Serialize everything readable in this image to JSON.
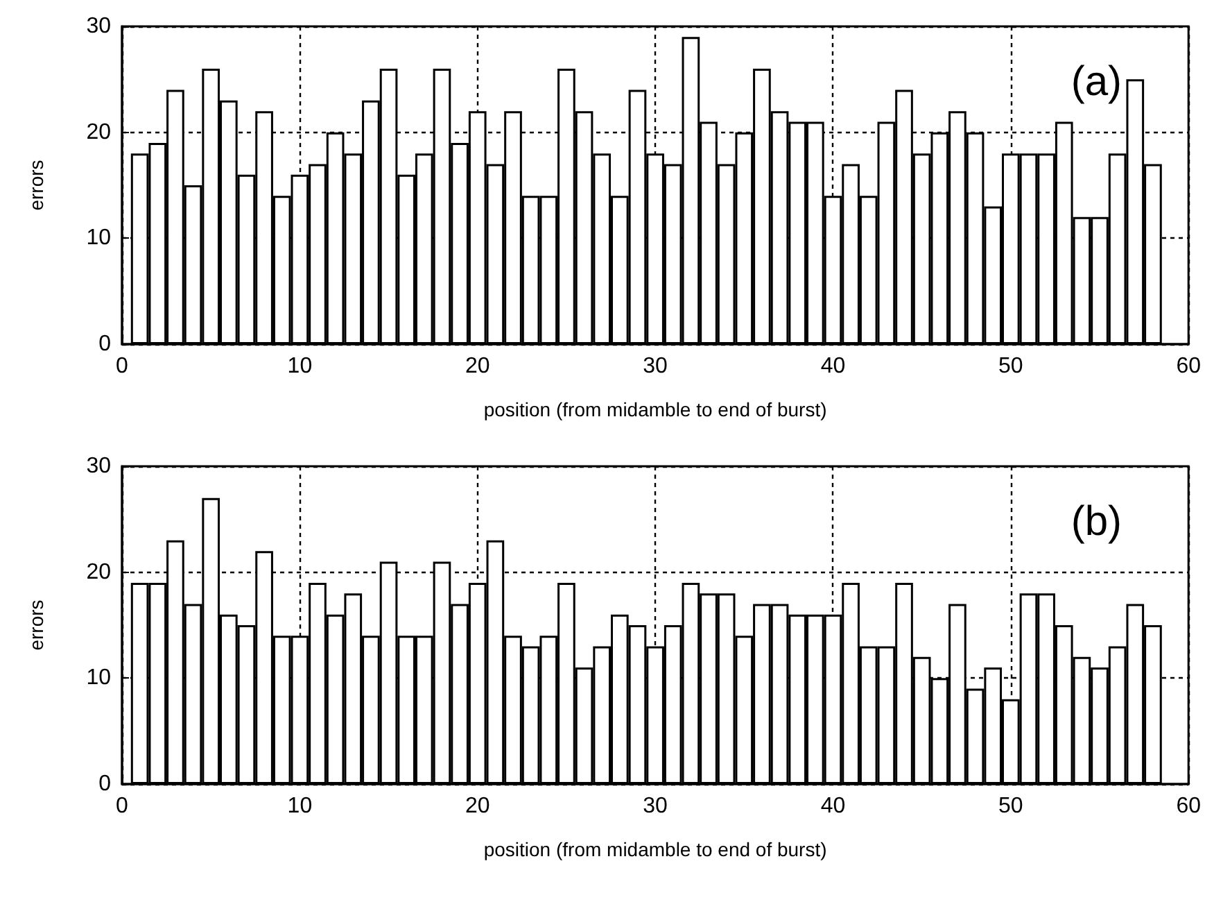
{
  "chart_data": [
    {
      "type": "bar",
      "xlabel": "position (from midamble to end of burst)",
      "ylabel": "errors",
      "annotations": [
        "(a)"
      ],
      "color": "#ffffff",
      "grid": true,
      "xlim": [
        0,
        60
      ],
      "xticks": [
        0,
        10,
        20,
        30,
        40,
        50,
        60
      ],
      "ylim": [
        0,
        30
      ],
      "yticks": [
        0,
        10,
        20,
        30
      ],
      "x": [
        1,
        2,
        3,
        4,
        5,
        6,
        7,
        8,
        9,
        10,
        11,
        12,
        13,
        14,
        15,
        16,
        17,
        18,
        19,
        20,
        21,
        22,
        23,
        24,
        25,
        26,
        27,
        28,
        29,
        30,
        31,
        32,
        33,
        34,
        35,
        36,
        37,
        38,
        39,
        40,
        41,
        42,
        43,
        44,
        45,
        46,
        47,
        48,
        49,
        50,
        51,
        52,
        53,
        54,
        55,
        56,
        57,
        58
      ],
      "values": [
        18,
        19,
        24,
        15,
        26,
        23,
        16,
        22,
        14,
        16,
        17,
        20,
        18,
        23,
        26,
        16,
        18,
        26,
        19,
        22,
        17,
        22,
        14,
        14,
        26,
        22,
        18,
        14,
        24,
        18,
        17,
        29,
        21,
        17,
        20,
        26,
        22,
        21,
        21,
        14,
        17,
        14,
        21,
        24,
        18,
        20,
        22,
        20,
        13,
        18,
        18,
        18,
        21,
        12,
        12,
        18,
        25,
        17
      ]
    },
    {
      "type": "bar",
      "xlabel": "position (from midamble to end of burst)",
      "ylabel": "errors",
      "annotations": [
        "(b)"
      ],
      "color": "#ffffff",
      "grid": true,
      "xlim": [
        0,
        60
      ],
      "xticks": [
        0,
        10,
        20,
        30,
        40,
        50,
        60
      ],
      "ylim": [
        0,
        30
      ],
      "yticks": [
        0,
        10,
        20,
        30
      ],
      "x": [
        1,
        2,
        3,
        4,
        5,
        6,
        7,
        8,
        9,
        10,
        11,
        12,
        13,
        14,
        15,
        16,
        17,
        18,
        19,
        20,
        21,
        22,
        23,
        24,
        25,
        26,
        27,
        28,
        29,
        30,
        31,
        32,
        33,
        34,
        35,
        36,
        37,
        38,
        39,
        40,
        41,
        42,
        43,
        44,
        45,
        46,
        47,
        48,
        49,
        50,
        51,
        52,
        53,
        54,
        55,
        56,
        57,
        58
      ],
      "values": [
        19,
        19,
        23,
        17,
        27,
        16,
        15,
        22,
        14,
        14,
        19,
        16,
        18,
        14,
        21,
        14,
        14,
        21,
        17,
        19,
        23,
        14,
        13,
        14,
        19,
        11,
        13,
        16,
        15,
        13,
        15,
        19,
        18,
        18,
        14,
        17,
        17,
        16,
        16,
        16,
        19,
        13,
        13,
        19,
        12,
        10,
        17,
        9,
        11,
        8,
        18,
        18,
        15,
        12,
        11,
        13,
        17,
        15
      ]
    }
  ]
}
